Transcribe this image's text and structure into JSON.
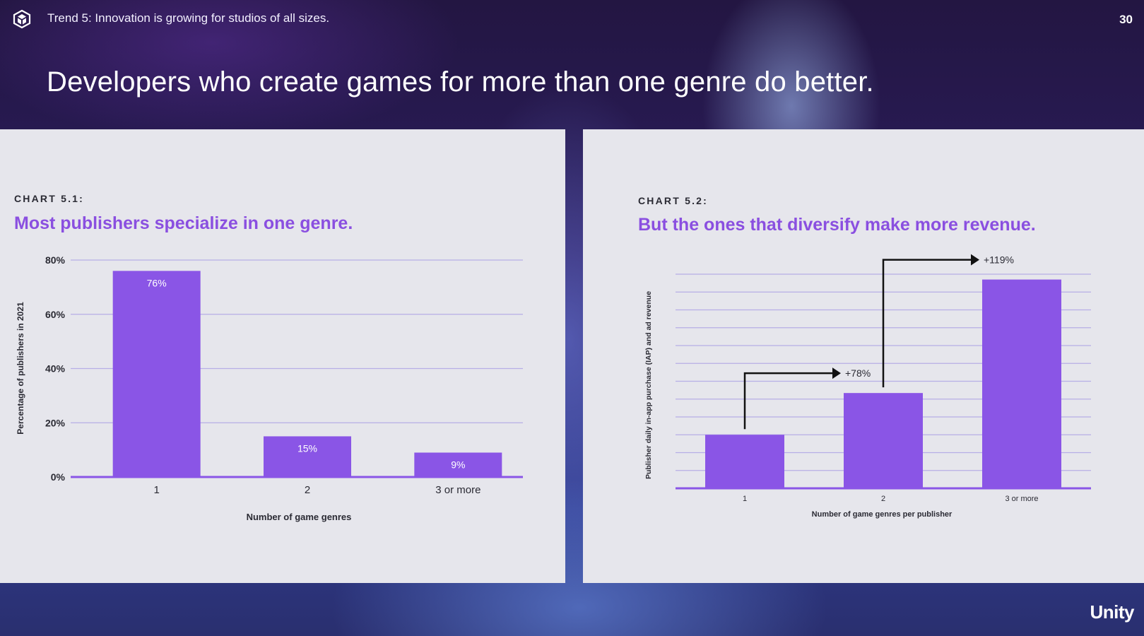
{
  "header": {
    "trend": "Trend 5: Innovation is growing for studios of all sizes.",
    "page_number": "30",
    "headline": "Developers who create games for more than one genre do better."
  },
  "brand": {
    "name": "Unity",
    "accent": "#8a55e6",
    "title_color": "#8a4fe0",
    "icon": "unity-cube-icon"
  },
  "chart_data": [
    {
      "type": "bar",
      "label": "CHART 5.1:",
      "title": "Most publishers specialize in one genre.",
      "categories": [
        "1",
        "2",
        "3 or more"
      ],
      "values": [
        76,
        15,
        9
      ],
      "data_labels": [
        "76%",
        "15%",
        "9%"
      ],
      "ylim": [
        0,
        80
      ],
      "yticks": [
        0,
        20,
        40,
        60,
        80
      ],
      "ytick_labels": [
        "0%",
        "20%",
        "40%",
        "60%",
        "80%"
      ],
      "xlabel": "Number of game genres",
      "ylabel": "Percentage of publishers in 2021",
      "grid": true
    },
    {
      "type": "bar",
      "label": "CHART 5.2:",
      "title": "But the ones that diversify make more revenue.",
      "categories": [
        "1",
        "2",
        "3 or more"
      ],
      "values": [
        1.0,
        1.78,
        3.9
      ],
      "ylim": [
        0,
        4.0
      ],
      "grid": true,
      "xlabel": "Number of game genres per publisher",
      "ylabel": "Publisher daily in-app purchase (IAP) and ad revenue",
      "annotations": [
        {
          "from": "1",
          "to": "2",
          "text": "+78%"
        },
        {
          "from": "2",
          "to": "3 or more",
          "text": "+119%"
        }
      ]
    }
  ]
}
